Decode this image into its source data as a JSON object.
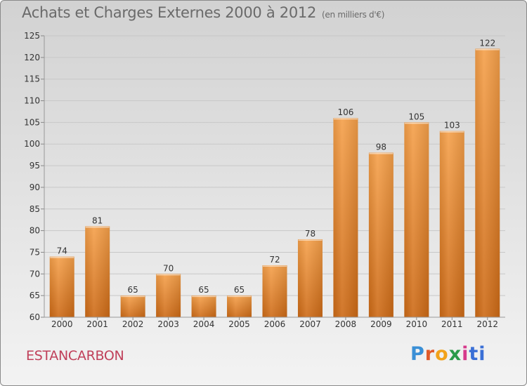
{
  "header": {
    "title": "Achats et Charges Externes 2000 à 2012",
    "subtitle": "(en milliers d'€)"
  },
  "footer": {
    "commune": "ESTANCARBON",
    "logo_parts": [
      "P",
      "r",
      "o",
      "x",
      "i",
      "ti"
    ]
  },
  "colors": {
    "bar_top": "#f5a04a",
    "bar_bottom": "#cd6a16",
    "axis_text": "#333333",
    "grid": "#c8c8c8"
  },
  "chart_data": {
    "type": "bar",
    "categories": [
      "2000",
      "2001",
      "2002",
      "2003",
      "2004",
      "2005",
      "2006",
      "2007",
      "2008",
      "2009",
      "2010",
      "2011",
      "2012"
    ],
    "values": [
      74,
      81,
      65,
      70,
      65,
      65,
      72,
      78,
      106,
      98,
      105,
      103,
      122
    ],
    "ylim": [
      60,
      125
    ],
    "yticks": [
      60,
      65,
      70,
      75,
      80,
      85,
      90,
      95,
      100,
      105,
      110,
      115,
      120,
      125
    ],
    "title": "Achats et Charges Externes 2000 à 2012",
    "xlabel": "",
    "ylabel": "",
    "grid": true,
    "data_labels": true
  }
}
